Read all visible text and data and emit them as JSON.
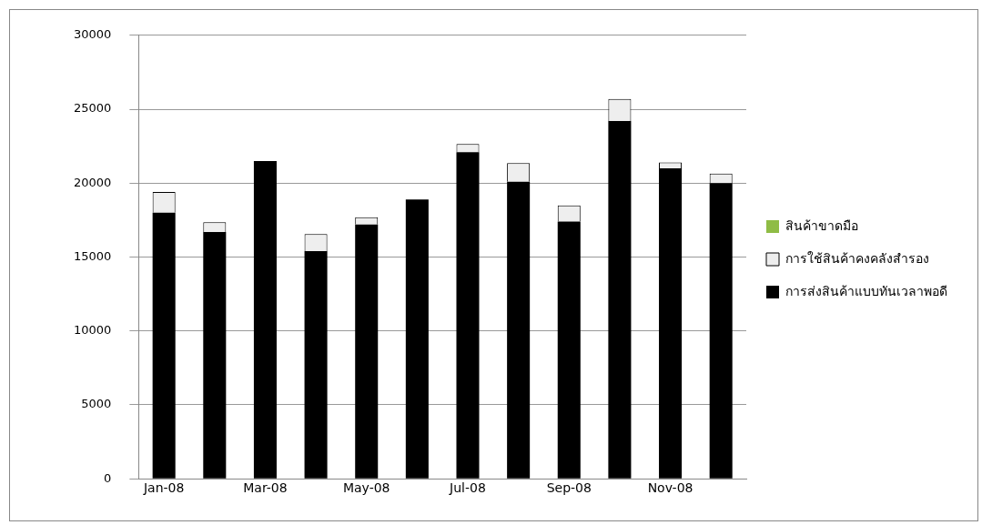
{
  "chart_data": {
    "type": "bar",
    "stacked": true,
    "categories": [
      "Jan-08",
      null,
      "Mar-08",
      null,
      "May-08",
      null,
      "Jul-08",
      null,
      "Sep-08",
      null,
      "Nov-08",
      null
    ],
    "series": [
      {
        "name": "การส่งสินค้าแบบทันเวลาพอดี",
        "color": "#000000",
        "values": [
          18000,
          16700,
          21500,
          15400,
          17200,
          18900,
          22100,
          20100,
          17400,
          24200,
          21000,
          20000
        ]
      },
      {
        "name": "การใช้สินค้าคงคลังสำรอง",
        "color": "#eeeeee",
        "values": [
          1400,
          650,
          0,
          1150,
          500,
          0,
          550,
          1250,
          1100,
          1500,
          400,
          650
        ]
      },
      {
        "name": "สินค้าขาดมือ",
        "color": "#8fbc45",
        "values": [
          0,
          0,
          0,
          0,
          0,
          0,
          0,
          0,
          0,
          0,
          0,
          0
        ]
      }
    ],
    "ylim": [
      0,
      30000
    ],
    "yticks": [
      0,
      5000,
      10000,
      15000,
      20000,
      25000,
      30000
    ],
    "grid": "y",
    "legend": "right"
  }
}
